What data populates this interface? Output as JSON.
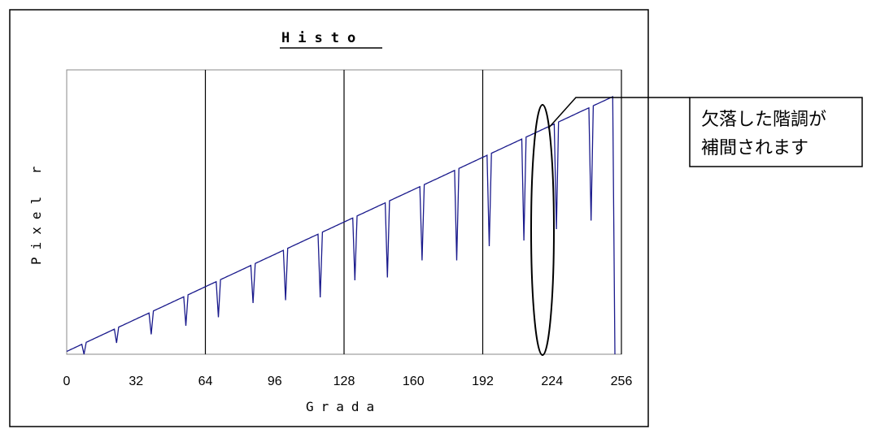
{
  "chart_data": {
    "type": "line",
    "title": "Histo",
    "xlabel": "Grada",
    "ylabel": "Pixel r",
    "xlim": [
      0,
      256
    ],
    "x_ticks": [
      "0",
      "32",
      "64",
      "96",
      "128",
      "160",
      "192",
      "224",
      "256"
    ],
    "vertical_gridlines_at": [
      64,
      128,
      192,
      256
    ],
    "grid": "vertical",
    "legend": "none",
    "line_color": "#1a1a8c",
    "series": [
      {
        "baseline": {
          "x": [
            0,
            256
          ],
          "y": [
            0.01,
            0.92
          ]
        },
        "dips": [
          {
            "x": 8,
            "y": 0.0
          },
          {
            "x": 23,
            "y": 0.04
          },
          {
            "x": 39,
            "y": 0.07
          },
          {
            "x": 55,
            "y": 0.1
          },
          {
            "x": 70,
            "y": 0.13
          },
          {
            "x": 86,
            "y": 0.18
          },
          {
            "x": 101,
            "y": 0.19
          },
          {
            "x": 117,
            "y": 0.2
          },
          {
            "x": 133,
            "y": 0.26
          },
          {
            "x": 148,
            "y": 0.27
          },
          {
            "x": 164,
            "y": 0.33
          },
          {
            "x": 180,
            "y": 0.33
          },
          {
            "x": 195,
            "y": 0.38
          },
          {
            "x": 211,
            "y": 0.4
          },
          {
            "x": 226,
            "y": 0.44
          },
          {
            "x": 242,
            "y": 0.47
          },
          {
            "x": 253,
            "y": 0.0
          }
        ]
      }
    ],
    "annotation": {
      "lines": [
        "欠落した階調が",
        "補間されます"
      ],
      "ellipse_center_x": 228
    }
  }
}
